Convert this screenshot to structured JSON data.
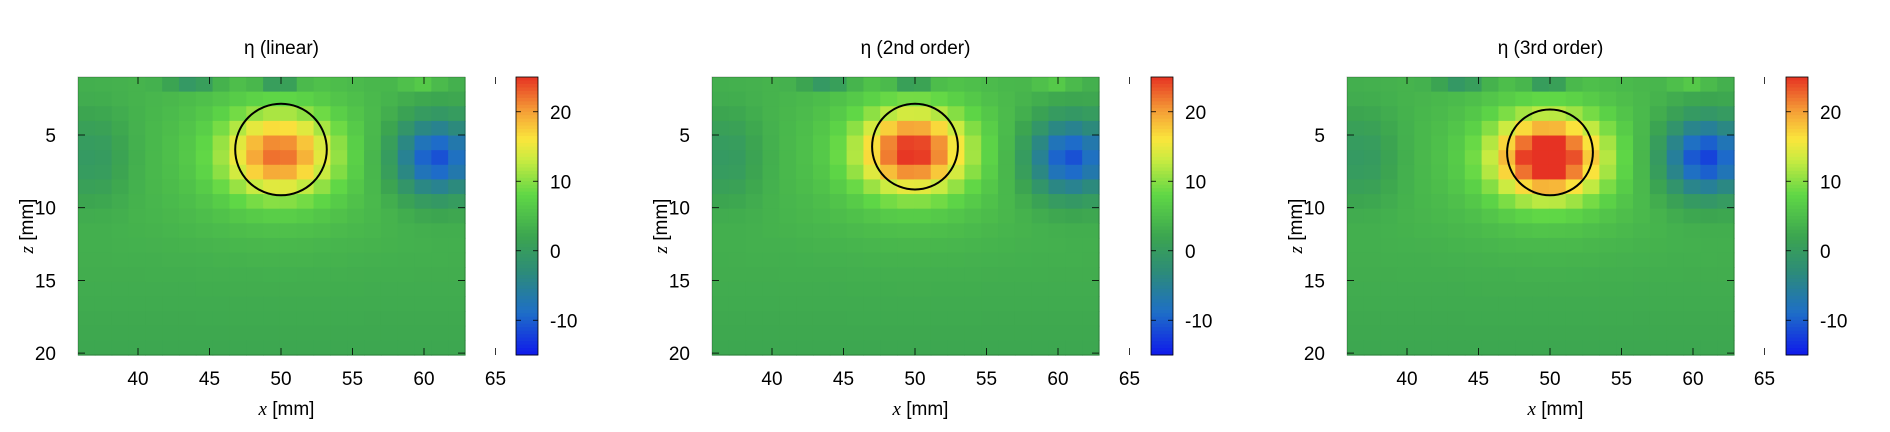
{
  "chart_data": [
    {
      "type": "heatmap",
      "title": "η (linear)",
      "xlabel_var": "x",
      "xlabel_unit": "[mm]",
      "ylabel_var": "z",
      "ylabel_unit": "[mm]",
      "xlim": [
        36,
        63
      ],
      "ylim": [
        20,
        1
      ],
      "xticks": [
        "40",
        "45",
        "50",
        "55",
        "60",
        "65"
      ],
      "yticks": [
        "5",
        "10",
        "15",
        "20"
      ],
      "colorbar": {
        "range": [
          -15,
          25
        ],
        "ticks": [
          "20",
          "10",
          "0",
          "-10"
        ]
      },
      "inclusion": {
        "center_x_mm": 50,
        "center_z_mm": 6,
        "radius_mm": 3.2
      },
      "peak_value": 18,
      "negative_lobe": {
        "x_mm": 61,
        "z_mm": 6.5,
        "value": -11
      }
    },
    {
      "type": "heatmap",
      "title": "η (2nd order)",
      "xlabel_var": "x",
      "xlabel_unit": "[mm]",
      "ylabel_var": "z",
      "ylabel_unit": "[mm]",
      "xlim": [
        36,
        63
      ],
      "ylim": [
        20,
        1
      ],
      "xticks": [
        "40",
        "45",
        "50",
        "55",
        "60",
        "65"
      ],
      "yticks": [
        "5",
        "10",
        "15",
        "20"
      ],
      "colorbar": {
        "range": [
          -15,
          25
        ],
        "ticks": [
          "20",
          "10",
          "0",
          "-10"
        ]
      },
      "inclusion": {
        "center_x_mm": 50,
        "center_z_mm": 5.8,
        "radius_mm": 3.0
      },
      "peak_value": 21,
      "negative_lobe": {
        "x_mm": 61,
        "z_mm": 6.5,
        "value": -11
      }
    },
    {
      "type": "heatmap",
      "title": "η (3rd order)",
      "xlabel_var": "x",
      "xlabel_unit": "[mm]",
      "ylabel_var": "z",
      "ylabel_unit": "[mm]",
      "xlim": [
        36,
        63
      ],
      "ylim": [
        20,
        1
      ],
      "xticks": [
        "40",
        "45",
        "50",
        "55",
        "60",
        "65"
      ],
      "yticks": [
        "5",
        "10",
        "15",
        "20"
      ],
      "colorbar": {
        "range": [
          -15,
          25
        ],
        "ticks": [
          "20",
          "10",
          "0",
          "-10"
        ]
      },
      "inclusion": {
        "center_x_mm": 50,
        "center_z_mm": 6.2,
        "radius_mm": 3.0
      },
      "peak_value": 24,
      "negative_lobe": {
        "x_mm": 61,
        "z_mm": 6.5,
        "value": -12
      }
    }
  ]
}
